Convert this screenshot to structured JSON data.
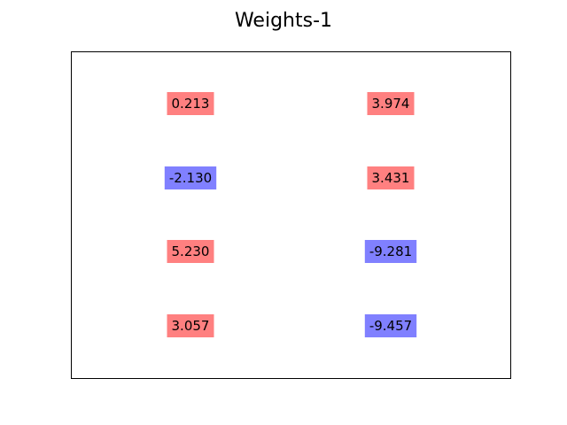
{
  "chart_data": {
    "type": "table",
    "title": "Weights-1",
    "xlabel": "",
    "ylabel": "",
    "grid": false,
    "columns": 2,
    "rows": 4,
    "cells": [
      [
        0.213,
        3.974
      ],
      [
        -2.13,
        3.431
      ],
      [
        5.23,
        -9.281
      ],
      [
        3.057,
        -9.457
      ]
    ],
    "cell_labels": [
      [
        "0.213",
        "3.974"
      ],
      [
        "-2.130",
        "3.431"
      ],
      [
        "5.230",
        "-9.281"
      ],
      [
        "3.057",
        "-9.457"
      ]
    ],
    "colors": {
      "positive": "#ff8080",
      "negative": "#8080ff",
      "frame": "#000000"
    }
  }
}
